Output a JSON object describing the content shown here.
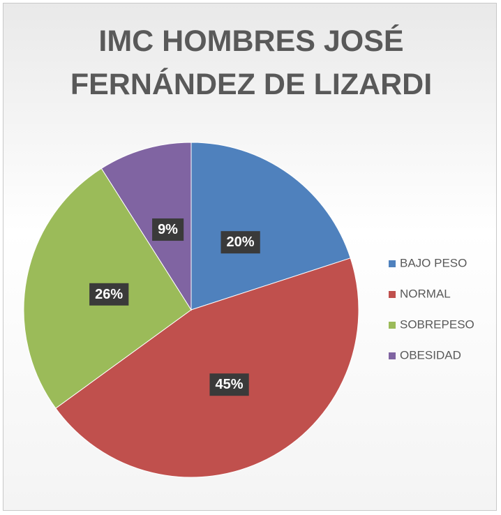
{
  "chart_data": {
    "type": "pie",
    "title": "IMC HOMBRES JOSÉ FERNÁNDEZ DE LIZARDI",
    "categories": [
      "BAJO PESO",
      "NORMAL",
      "SOBREPESO",
      "OBESIDAD"
    ],
    "values": [
      20,
      45,
      26,
      9
    ],
    "value_labels": [
      "20%",
      "45%",
      "26%",
      "9%"
    ],
    "colors": [
      "#4f81bd",
      "#c0504d",
      "#9bbb59",
      "#8064a2"
    ],
    "legend": "right"
  }
}
